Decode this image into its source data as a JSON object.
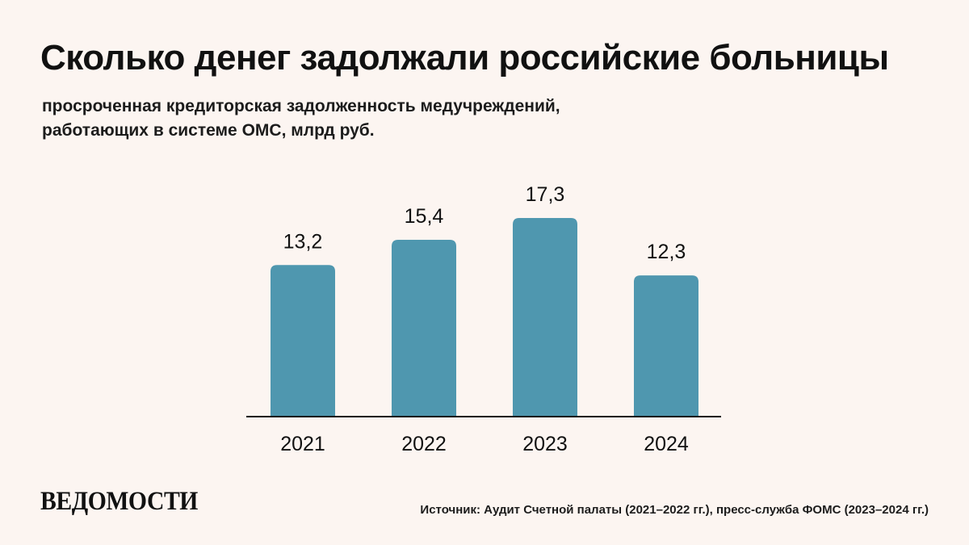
{
  "header": {
    "title": "Сколько денег задолжали российские больницы",
    "subtitle_line1": "просроченная кредиторская задолженность медучреждений,",
    "subtitle_line2": "работающих в системе ОМС, млрд руб."
  },
  "footer": {
    "logo_text": "ВЕДОМОСТИ",
    "source": "Источник: Аудит Счетной палаты (2021–2022 гг.), пресс-служба ФОМС (2023–2024 гг.)"
  },
  "colors": {
    "background": "#fcf5f1",
    "bar": "#4f97af",
    "axis": "#111111",
    "text": "#111111"
  },
  "chart_data": {
    "type": "bar",
    "categories": [
      "2021",
      "2022",
      "2023",
      "2024"
    ],
    "values": [
      13.2,
      15.4,
      17.3,
      12.3
    ],
    "value_labels": [
      "13,2",
      "15,4",
      "17,3",
      "12,3"
    ],
    "title": "Сколько денег задолжали российские больницы",
    "subtitle": "просроченная кредиторская задолженность медучреждений, работающих в системе ОМС, млрд руб.",
    "xlabel": "",
    "ylabel": "",
    "ylim": [
      0,
      17.3
    ],
    "grid": false,
    "legend": "none",
    "y_axis_shown": false
  }
}
